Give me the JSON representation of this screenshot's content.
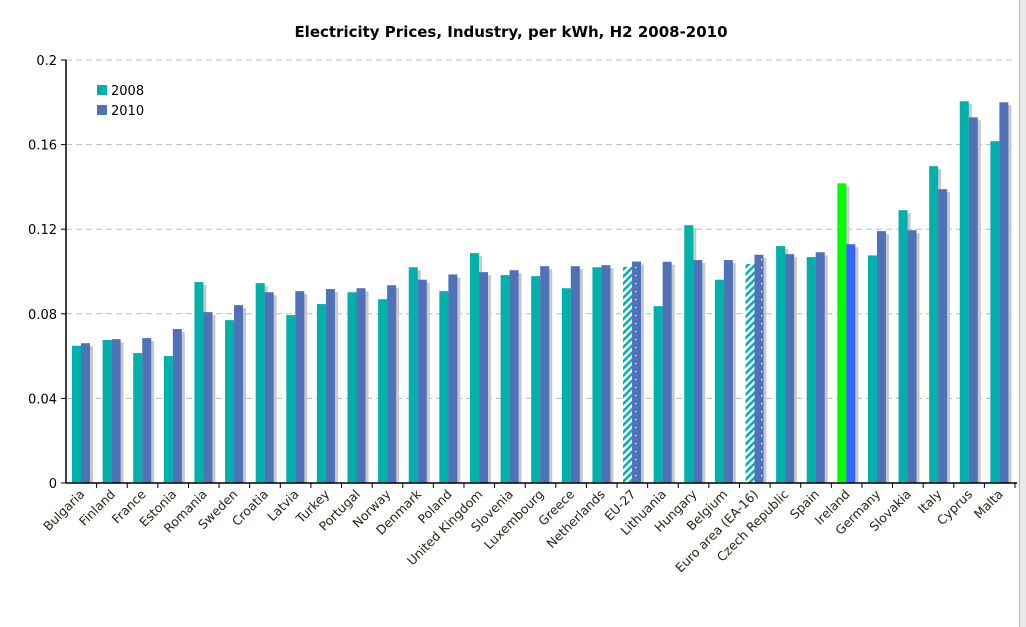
{
  "chart_data": {
    "type": "bar",
    "title": "Electricity Prices, Industry, per kWh, H2 2008-2010",
    "xlabel": "",
    "ylabel": "",
    "ylim": [
      0,
      0.2
    ],
    "yticks": [
      "0",
      "0.04",
      "0.08",
      "0.12",
      "0.16",
      "0.2"
    ],
    "grid": true,
    "legend_position": "top-left",
    "categories": [
      "Bulgaria",
      "Finland",
      "France",
      "Estonia",
      "Romania",
      "Sweden",
      "Croatia",
      "Latvia",
      "Turkey",
      "Portugal",
      "Norway",
      "Denmark",
      "Poland",
      "United Kingdom",
      "Slovenia",
      "Luxembourg",
      "Greece",
      "Netherlands",
      "EU-27",
      "Lithuania",
      "Hungary",
      "Belgium",
      "Euro area (EA-16)",
      "Czech Republic",
      "Spain",
      "Ireland",
      "Germany",
      "Slovakia",
      "Italy",
      "Cyprus",
      "Malta"
    ],
    "series": [
      {
        "name": "2008",
        "color": "#00b0ab",
        "values": [
          0.0649,
          0.0676,
          0.0614,
          0.06,
          0.095,
          0.077,
          0.0945,
          0.0794,
          0.0846,
          0.0902,
          0.0869,
          0.102,
          0.0907,
          0.1087,
          0.0983,
          0.0978,
          0.0921,
          0.102,
          0.1022,
          0.0836,
          0.1219,
          0.0961,
          0.1036,
          0.112,
          0.1068,
          0.1417,
          0.1076,
          0.129,
          0.1498,
          0.1805,
          0.1616
        ]
      },
      {
        "name": "2010",
        "color": "#4f71b8",
        "values": [
          0.0661,
          0.068,
          0.0685,
          0.0728,
          0.0808,
          0.0841,
          0.0902,
          0.0907,
          0.0917,
          0.0921,
          0.0935,
          0.0961,
          0.0986,
          0.0997,
          0.1006,
          0.1025,
          0.1025,
          0.103,
          0.1047,
          0.1046,
          0.1054,
          0.1054,
          0.1079,
          0.1082,
          0.1091,
          0.1129,
          0.1191,
          0.1195,
          0.1389,
          0.1729,
          0.18
        ]
      }
    ],
    "aggregate_categories": [
      "EU-27",
      "Euro area (EA-16)"
    ],
    "highlight": {
      "category": "Ireland",
      "color_2008": "#00ff00",
      "color_2010": "#3366ff"
    }
  }
}
